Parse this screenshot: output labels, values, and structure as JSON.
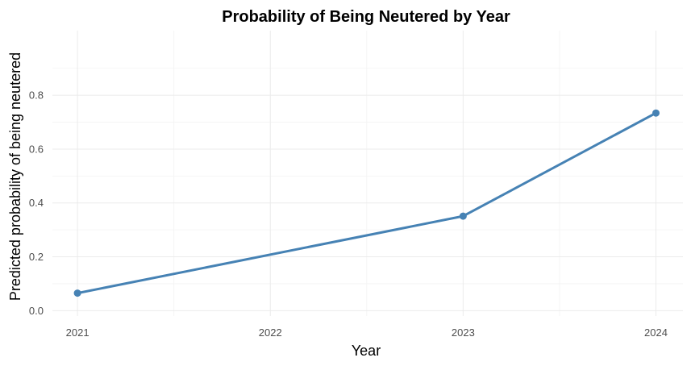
{
  "chart_data": {
    "type": "line",
    "title": "Probability of Being Neutered by Year",
    "xlabel": "Year",
    "ylabel": "Predicted probability of being neutered",
    "x": [
      2021,
      2022,
      2023,
      2024
    ],
    "xticks": [
      "2021",
      "2022",
      "2023",
      "2024"
    ],
    "yticks": [
      "0.0",
      "0.2",
      "0.4",
      "0.6",
      "0.8"
    ],
    "ylim": [
      -0.02,
      1.04
    ],
    "xlim": [
      2020.87,
      2024.14
    ],
    "grid": true,
    "series": [
      {
        "x": [
          2021,
          2023,
          2024
        ],
        "values": [
          0.065,
          0.351,
          0.734
        ],
        "color": "#4682B4"
      }
    ]
  }
}
